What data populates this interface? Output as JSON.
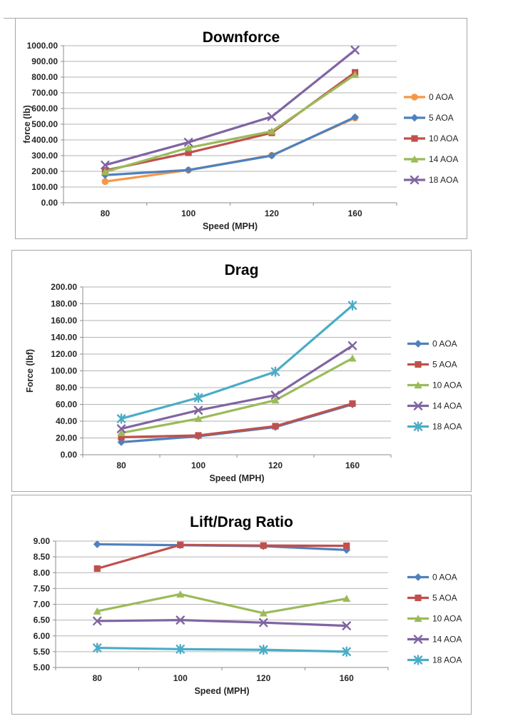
{
  "window": {
    "background": "#ffffff",
    "panel_border": "#a6a6a6"
  },
  "chart_data": [
    {
      "type": "line",
      "title": "Downforce",
      "xlabel": "Speed (MPH)",
      "ylabel": "force (lb)",
      "categories": [
        "80",
        "100",
        "120",
        "160"
      ],
      "ylim": [
        0,
        1000
      ],
      "ytick_step": 100,
      "ytick_labels": [
        "0.00",
        "100.00",
        "200.00",
        "300.00",
        "400.00",
        "500.00",
        "600.00",
        "700.00",
        "800.00",
        "900.00",
        "1000.00"
      ],
      "grid": true,
      "legend_position": "right",
      "series": [
        {
          "name": "0 AOA",
          "color": "#F79646",
          "marker": "circle",
          "values": [
            135,
            208,
            302,
            540
          ]
        },
        {
          "name": "5 AOA",
          "color": "#4F81BD",
          "marker": "diamond",
          "values": [
            176,
            208,
            300,
            545
          ]
        },
        {
          "name": "10 AOA",
          "color": "#C0504D",
          "marker": "square",
          "values": [
            206,
            318,
            445,
            830
          ]
        },
        {
          "name": "14 AOA",
          "color": "#9BBB59",
          "marker": "triangle",
          "values": [
            197,
            350,
            455,
            815
          ]
        },
        {
          "name": "18 AOA",
          "color": "#8064A2",
          "marker": "x",
          "values": [
            240,
            385,
            548,
            972
          ]
        }
      ]
    },
    {
      "type": "line",
      "title": "Drag",
      "xlabel": "Speed (MPH)",
      "ylabel": "Force (lbf)",
      "categories": [
        "80",
        "100",
        "120",
        "160"
      ],
      "ylim": [
        0,
        200
      ],
      "ytick_step": 20,
      "ytick_labels": [
        "0.00",
        "20.00",
        "40.00",
        "60.00",
        "80.00",
        "100.00",
        "120.00",
        "140.00",
        "160.00",
        "180.00",
        "200.00"
      ],
      "grid": true,
      "legend_position": "right",
      "series": [
        {
          "name": "0 AOA",
          "color": "#4F81BD",
          "marker": "diamond",
          "values": [
            15,
            22,
            33,
            60
          ]
        },
        {
          "name": "5 AOA",
          "color": "#C0504D",
          "marker": "square",
          "values": [
            21,
            23,
            34,
            61
          ]
        },
        {
          "name": "10 AOA",
          "color": "#9BBB59",
          "marker": "triangle",
          "values": [
            26,
            43,
            65,
            115
          ]
        },
        {
          "name": "14 AOA",
          "color": "#8064A2",
          "marker": "x",
          "values": [
            31,
            53,
            71,
            130
          ]
        },
        {
          "name": "18 AOA",
          "color": "#4BACC6",
          "marker": "asterisk",
          "values": [
            43,
            68,
            99,
            178
          ]
        }
      ]
    },
    {
      "type": "line",
      "title": "Lift/Drag Ratio",
      "xlabel": "Speed (MPH)",
      "ylabel": "",
      "categories": [
        "80",
        "100",
        "120",
        "160"
      ],
      "ylim": [
        5,
        9
      ],
      "ytick_step": 0.5,
      "ytick_labels": [
        "5.00",
        "5.50",
        "6.00",
        "6.50",
        "7.00",
        "7.50",
        "8.00",
        "8.50",
        "9.00"
      ],
      "grid": true,
      "legend_position": "right",
      "series": [
        {
          "name": "0 AOA",
          "color": "#4F81BD",
          "marker": "diamond",
          "values": [
            8.9,
            8.87,
            8.84,
            8.72
          ]
        },
        {
          "name": "5 AOA",
          "color": "#C0504D",
          "marker": "square",
          "values": [
            8.13,
            8.88,
            8.86,
            8.85
          ]
        },
        {
          "name": "10 AOA",
          "color": "#9BBB59",
          "marker": "triangle",
          "values": [
            6.78,
            7.32,
            6.72,
            7.18
          ]
        },
        {
          "name": "14 AOA",
          "color": "#8064A2",
          "marker": "x",
          "values": [
            6.47,
            6.5,
            6.42,
            6.32
          ]
        },
        {
          "name": "18 AOA",
          "color": "#4BACC6",
          "marker": "asterisk",
          "values": [
            5.62,
            5.58,
            5.56,
            5.5
          ]
        }
      ]
    }
  ]
}
